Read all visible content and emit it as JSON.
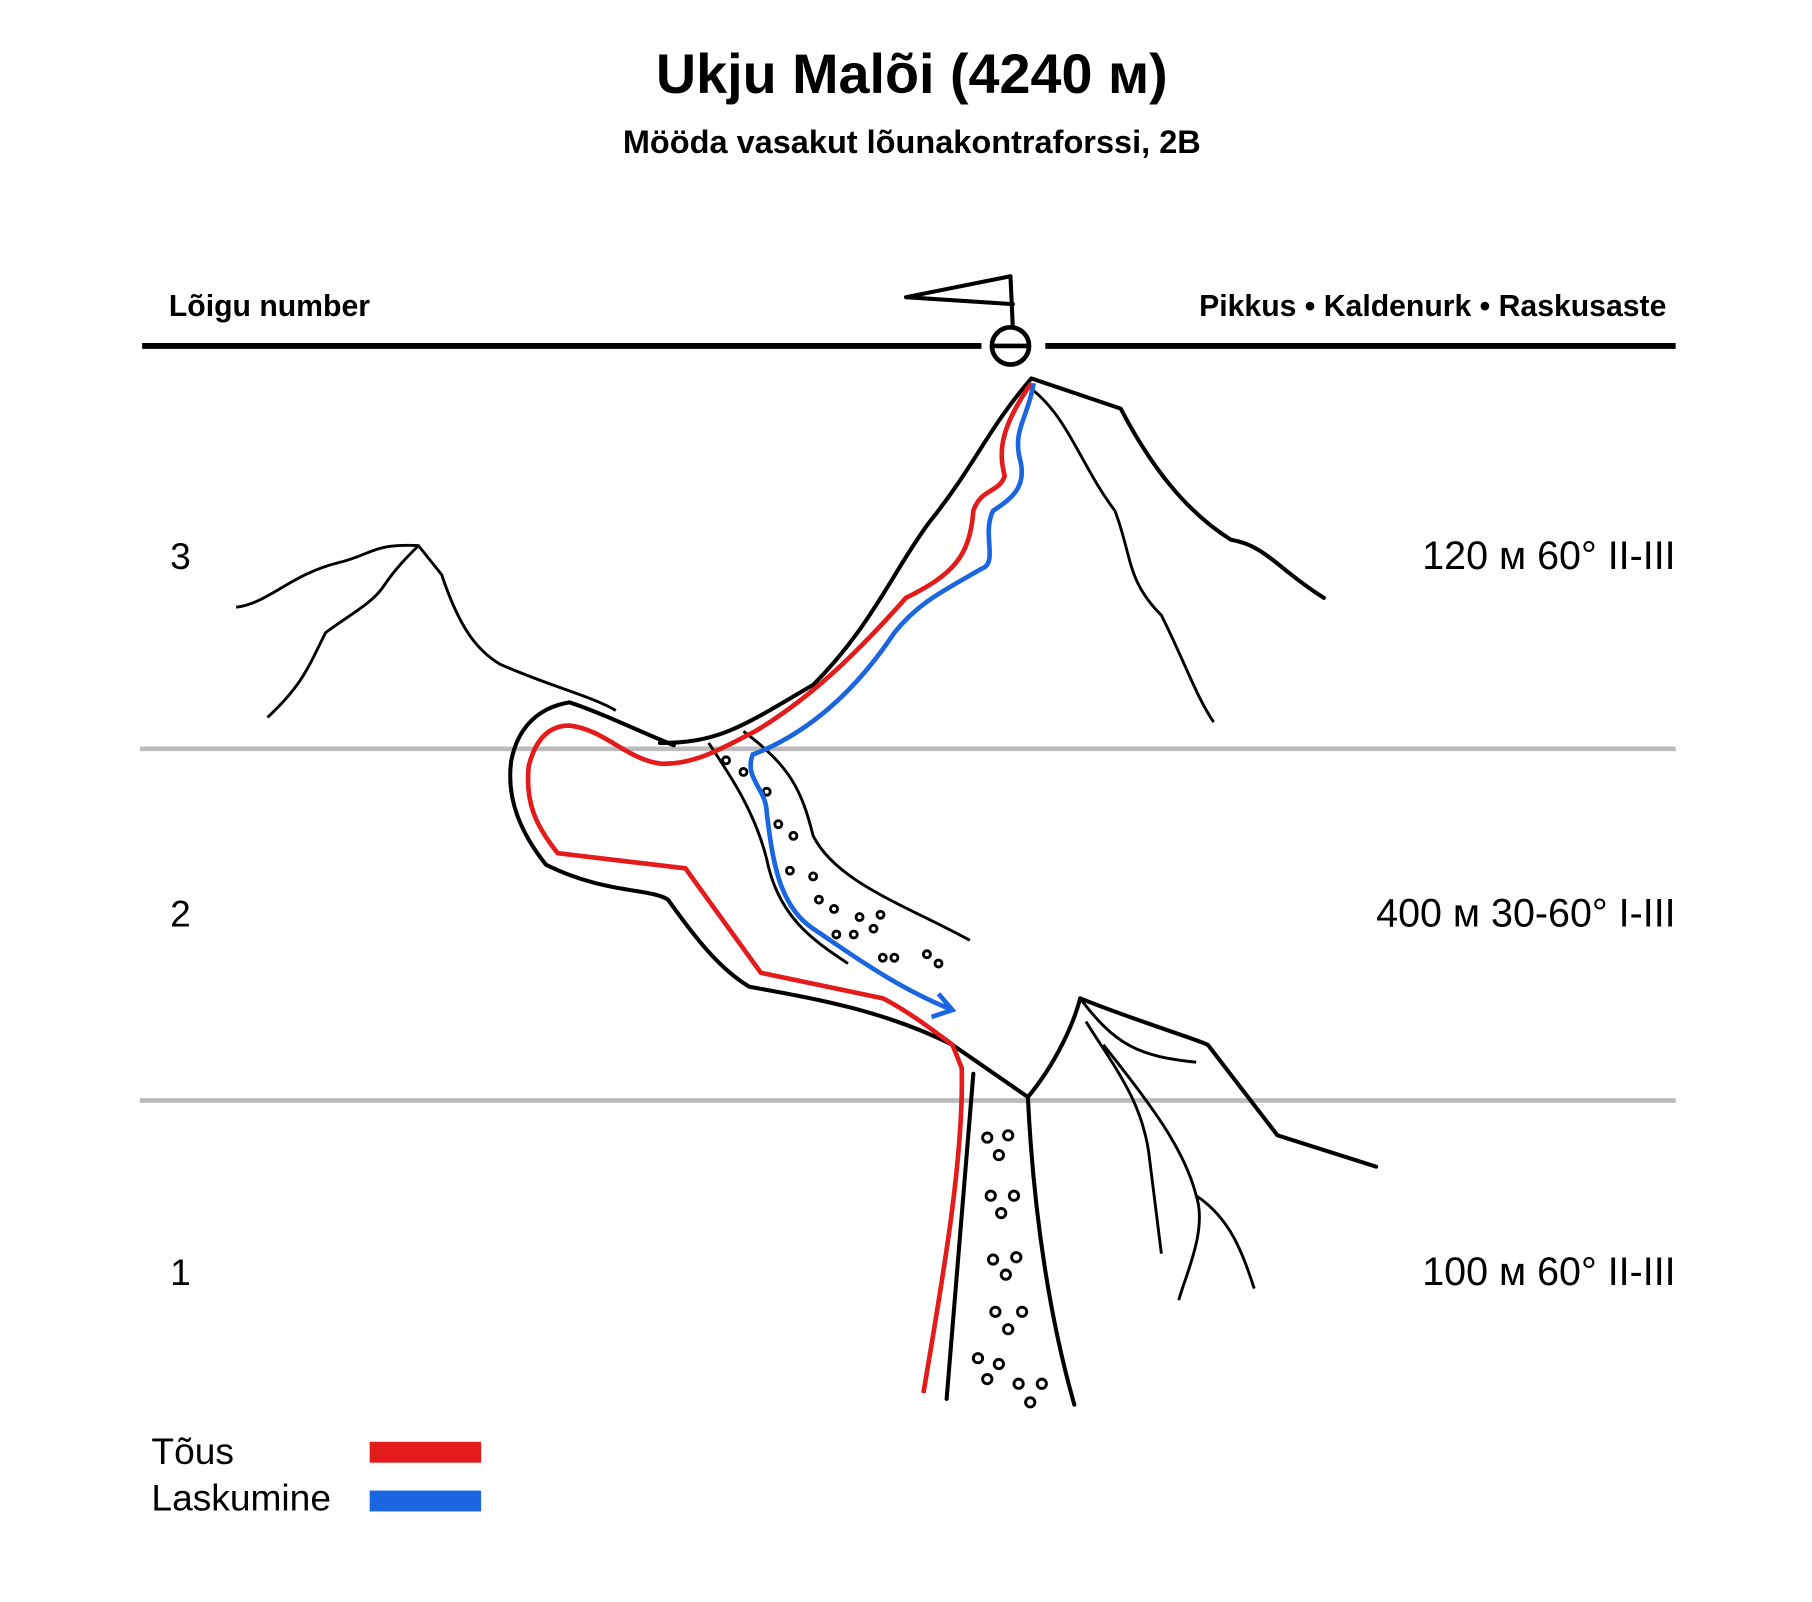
{
  "header": {
    "title": "Ukju Malõi (4240 м)",
    "subtitle": "Mööda vasakut lõunakontraforssi, 2B"
  },
  "columns": {
    "left": "Lõigu number",
    "right": "Pikkus • Kaldenurk • Raskusaste"
  },
  "segments": [
    {
      "number": "3",
      "stats": "120 м 60° II-III"
    },
    {
      "number": "2",
      "stats": "400 м 30-60° I-III"
    },
    {
      "number": "1",
      "stats": "100 м 60° II-III"
    }
  ],
  "legend": [
    {
      "label": "Tõus",
      "color": "#e31b1b"
    },
    {
      "label": "Laskumine",
      "color": "#1a66e0"
    }
  ]
}
